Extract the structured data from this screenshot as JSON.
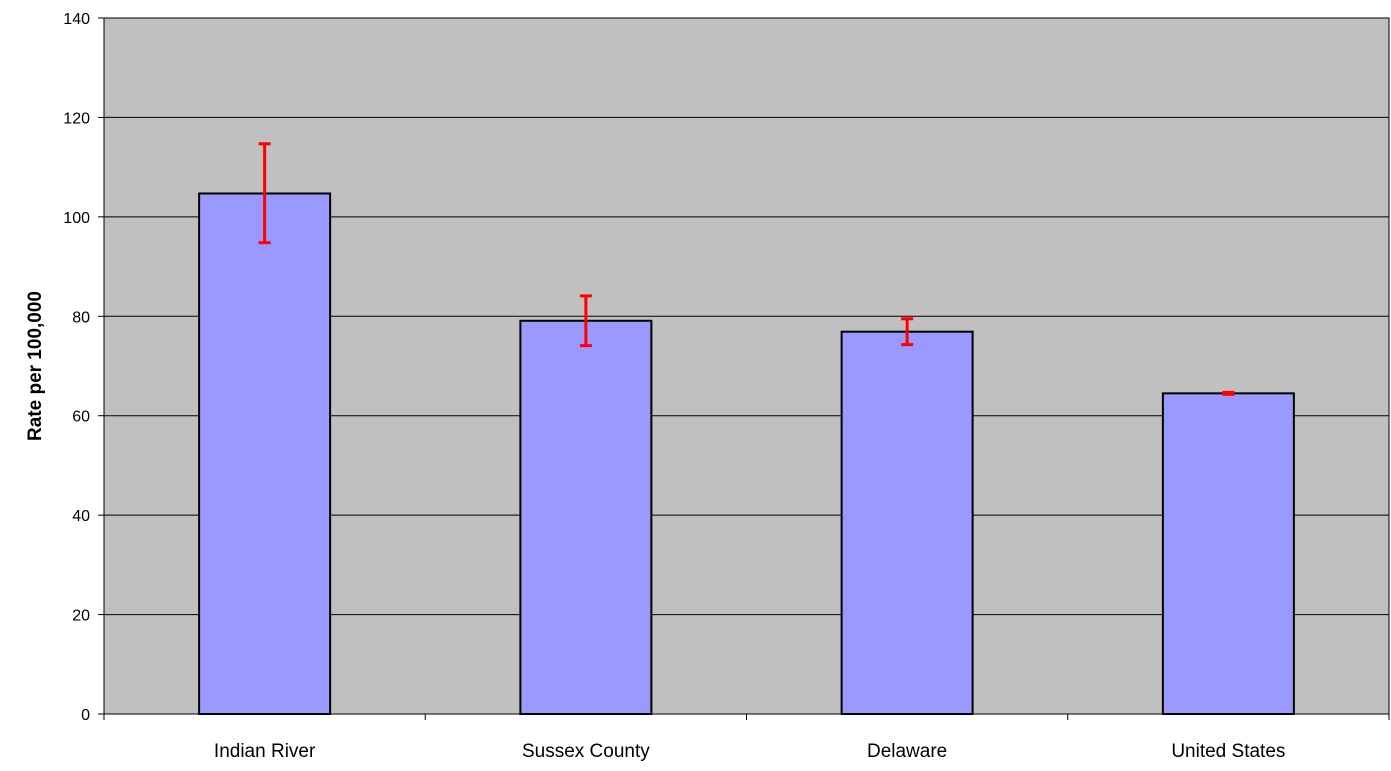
{
  "chart_data": {
    "type": "bar",
    "title": "",
    "xlabel": "",
    "ylabel": "Rate per 100,000",
    "ylim": [
      0,
      140
    ],
    "yticks": [
      0,
      20,
      40,
      60,
      80,
      100,
      120,
      140
    ],
    "grid": true,
    "legend": "none",
    "categories": [
      "Indian River",
      "Sussex County",
      "Delaware",
      "United States"
    ],
    "series": [
      {
        "values": [
          104.7,
          79.1,
          76.9,
          64.5
        ],
        "error_low": [
          94.8,
          74.1,
          74.3,
          64.3
        ],
        "error_high": [
          114.7,
          84.1,
          79.5,
          64.7
        ]
      }
    ],
    "colors": {
      "plot_background": "#c0c0c0",
      "bar_fill": "#9999ff",
      "bar_stroke": "#000000",
      "error_bar": "#ff0000",
      "gridline": "#000000"
    }
  }
}
